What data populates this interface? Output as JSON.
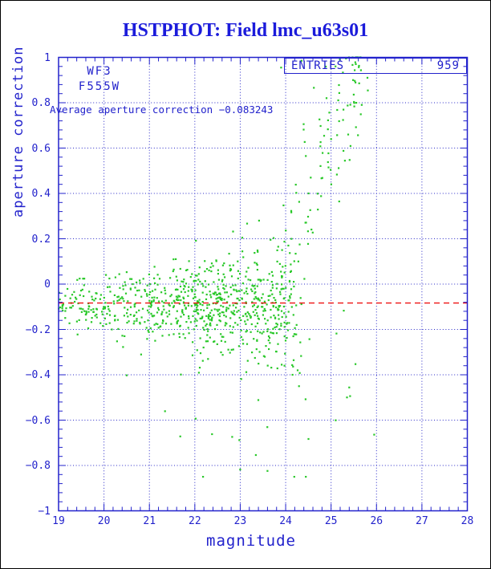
{
  "title": {
    "text": "HSTPHOT: Field lmc_u63s01",
    "color": "#1b1bdb"
  },
  "colors": {
    "axis_blue": "#2222cc",
    "grid_blue": "#2a2ac8",
    "point_green": "#29c829",
    "average_red": "#ee1111",
    "frame_black": "#000000",
    "background": "#ffffff"
  },
  "chart_data": {
    "type": "scatter",
    "title": "HSTPHOT: Field lmc_u63s01",
    "xlabel": "magnitude",
    "ylabel": "aperture correction",
    "xlim": [
      19,
      28
    ],
    "ylim": [
      -1,
      1
    ],
    "x_ticks": [
      19,
      20,
      21,
      22,
      23,
      24,
      25,
      26,
      27,
      28
    ],
    "x_tick_labels": [
      "19",
      "20",
      "21",
      "22",
      "23",
      "24",
      "25",
      "26",
      "27",
      "28"
    ],
    "x_minor_step": 0.2,
    "y_ticks": [
      1,
      0.8,
      0.6,
      0.4,
      0.2,
      0,
      -0.2,
      -0.4,
      -0.6,
      -0.8,
      -1
    ],
    "y_tick_labels": [
      "1",
      "0.8",
      "0.6",
      "0.4",
      "0.2",
      "0",
      "−0.2",
      "−0.4",
      "−0.6",
      "−0.8",
      "−1"
    ],
    "y_minor_step": 0.04,
    "grid": "dotted",
    "legend_position": "none",
    "detector": "WF3",
    "filter": "F555W",
    "entries_label": "ENTRIES",
    "entries_value": "959",
    "annotation": "Average aperture correction −0.083243",
    "average_line": {
      "value": -0.083243,
      "style": "dashed",
      "color": "#ee1111"
    },
    "n_points": 959,
    "point_color": "#29c829",
    "notable_points": [
      [
        23.0,
        -0.818
      ],
      [
        23.6,
        -0.824
      ],
      [
        25.4,
        -0.456
      ],
      [
        25.35,
        -0.5
      ],
      [
        25.95,
        -0.664
      ],
      [
        22.38,
        -0.662
      ],
      [
        22.98,
        -0.688
      ],
      [
        24.35,
        0.985
      ],
      [
        23.9,
        0.955
      ],
      [
        25.8,
        0.91
      ],
      [
        24.62,
        0.866
      ],
      [
        25.18,
        0.843
      ],
      [
        25.81,
        0.854
      ],
      [
        25.28,
        -0.117
      ]
    ],
    "scatter_model": {
      "seed": 42,
      "bulk": {
        "bins": [
          [
            19,
            19.5,
            35
          ],
          [
            19.5,
            20,
            45
          ],
          [
            20,
            20.5,
            50
          ],
          [
            20.5,
            21,
            55
          ],
          [
            21,
            21.5,
            70
          ],
          [
            21.5,
            22,
            90
          ],
          [
            22,
            22.5,
            110
          ],
          [
            22.5,
            23,
            110
          ],
          [
            23,
            23.5,
            100
          ],
          [
            23.5,
            24,
            90
          ],
          [
            24,
            24.35,
            30
          ]
        ],
        "mean": -0.085,
        "sigma_at_19": 0.045,
        "sigma_at_24": 0.13,
        "low_tail_prob": 0.08,
        "low_tail_scale": 0.1,
        "y_max": 0.28,
        "y_min": -0.75
      },
      "branch": {
        "count": 120,
        "mag_min": 23.7,
        "mag_span": 2.0,
        "mag_pow": 0.85,
        "zero_mag": 23.8,
        "slope": 0.52,
        "noise": 0.18,
        "y_min": -0.15,
        "y_max": 1.0
      },
      "deep_outliers": {
        "count": 40,
        "mag_min": 21.3,
        "mag_span": 4.3,
        "y_start": -0.2,
        "tail_scale": 0.18,
        "y_floor": -0.85
      }
    }
  }
}
